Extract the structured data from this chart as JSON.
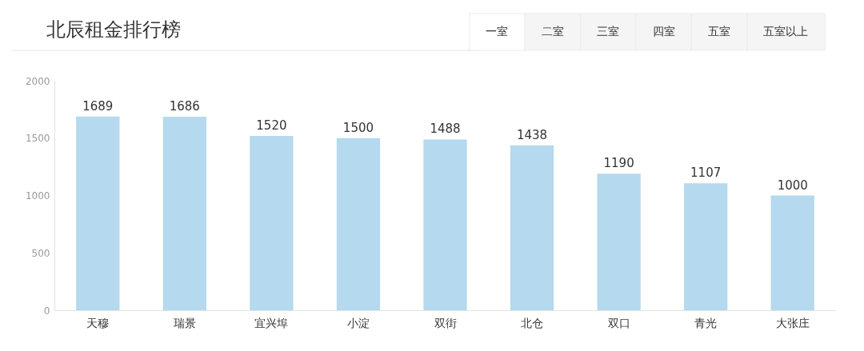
{
  "chart_data": {
    "type": "bar",
    "title": "北辰租金排行榜",
    "categories": [
      "天穆",
      "瑞景",
      "宜兴埠",
      "小淀",
      "双街",
      "北仓",
      "双口",
      "青光",
      "大张庄"
    ],
    "values": [
      1689,
      1686,
      1520,
      1500,
      1488,
      1438,
      1190,
      1107,
      1000
    ],
    "color": "#b5d9ee",
    "ylim": [
      0,
      2000
    ],
    "yticks": [
      0,
      500,
      1000,
      1500,
      2000
    ],
    "grid": false,
    "data_labels": true,
    "annotations": [
      "一室",
      "二室",
      "三室",
      "四室",
      "五室",
      "五室以上"
    ]
  }
}
